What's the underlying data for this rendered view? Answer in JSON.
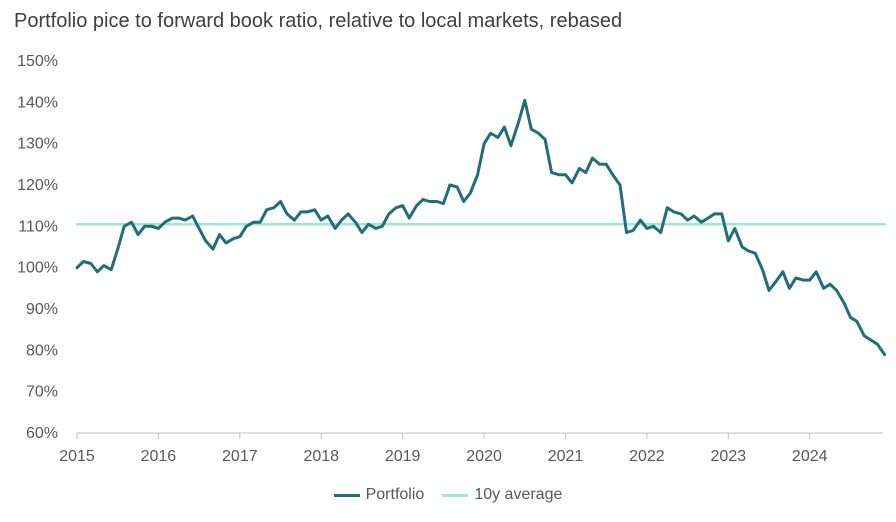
{
  "chart_data": {
    "type": "line",
    "title": "Portfolio pice to forward book ratio, relative to local markets, rebased",
    "xlabel": "",
    "ylabel": "",
    "xlim": [
      2015,
      2024.9
    ],
    "ylim": [
      60,
      150
    ],
    "y_ticks": [
      60,
      70,
      80,
      90,
      100,
      110,
      120,
      130,
      140,
      150
    ],
    "y_tick_labels": [
      "60%",
      "70%",
      "80%",
      "90%",
      "100%",
      "110%",
      "120%",
      "130%",
      "140%",
      "150%"
    ],
    "x_ticks": [
      2015,
      2016,
      2017,
      2018,
      2019,
      2020,
      2021,
      2022,
      2023,
      2024
    ],
    "x_tick_labels": [
      "2015",
      "2016",
      "2017",
      "2018",
      "2019",
      "2020",
      "2021",
      "2022",
      "2023",
      "2024"
    ],
    "grid": false,
    "legend_position": "bottom",
    "series": [
      {
        "name": "Portfolio",
        "color": "#1F6E79",
        "x": [
          2015.0,
          2015.08,
          2015.17,
          2015.25,
          2015.33,
          2015.42,
          2015.5,
          2015.58,
          2015.67,
          2015.75,
          2015.83,
          2015.92,
          2016.0,
          2016.08,
          2016.17,
          2016.25,
          2016.33,
          2016.42,
          2016.5,
          2016.58,
          2016.67,
          2016.75,
          2016.83,
          2016.92,
          2017.0,
          2017.08,
          2017.17,
          2017.25,
          2017.33,
          2017.42,
          2017.5,
          2017.58,
          2017.67,
          2017.75,
          2017.83,
          2017.92,
          2018.0,
          2018.08,
          2018.17,
          2018.25,
          2018.33,
          2018.42,
          2018.5,
          2018.58,
          2018.67,
          2018.75,
          2018.83,
          2018.92,
          2019.0,
          2019.08,
          2019.17,
          2019.25,
          2019.33,
          2019.42,
          2019.5,
          2019.58,
          2019.67,
          2019.75,
          2019.83,
          2019.92,
          2020.0,
          2020.08,
          2020.17,
          2020.25,
          2020.33,
          2020.42,
          2020.5,
          2020.58,
          2020.67,
          2020.75,
          2020.83,
          2020.92,
          2021.0,
          2021.08,
          2021.17,
          2021.25,
          2021.33,
          2021.42,
          2021.5,
          2021.58,
          2021.67,
          2021.75,
          2021.83,
          2021.92,
          2022.0,
          2022.08,
          2022.17,
          2022.25,
          2022.33,
          2022.42,
          2022.5,
          2022.58,
          2022.67,
          2022.75,
          2022.83,
          2022.92,
          2023.0,
          2023.08,
          2023.17,
          2023.25,
          2023.33,
          2023.42,
          2023.5,
          2023.58,
          2023.67,
          2023.75,
          2023.83,
          2023.92,
          2024.0,
          2024.08,
          2024.17,
          2024.25,
          2024.33,
          2024.42,
          2024.5,
          2024.58,
          2024.67,
          2024.75,
          2024.83,
          2024.92
        ],
        "values": [
          100,
          101.5,
          101,
          99,
          100.5,
          99.5,
          104.5,
          110,
          111,
          108,
          110,
          110,
          109.5,
          111,
          112,
          112,
          111.5,
          112.5,
          109.5,
          106.5,
          104.5,
          108,
          106,
          107,
          107.5,
          110,
          111,
          111,
          114,
          114.5,
          116,
          113,
          111.5,
          113.5,
          113.5,
          114,
          111.5,
          112.5,
          109.5,
          111.5,
          113,
          111,
          108.5,
          110.5,
          109.5,
          110,
          113,
          114.5,
          115,
          112,
          115,
          116.5,
          116,
          116,
          115.5,
          120,
          119.5,
          116,
          118,
          122.5,
          130,
          132.5,
          131.5,
          134,
          129.5,
          135,
          140.5,
          133.5,
          132.5,
          131,
          123,
          122.5,
          122.5,
          120.5,
          124,
          123,
          126.5,
          125,
          125,
          122.5,
          120,
          108.5,
          109,
          111.5,
          109.5,
          110,
          108.5,
          114.5,
          113.5,
          113,
          111.5,
          112.5,
          111,
          112,
          113,
          113,
          106.5,
          109.5,
          105,
          104,
          103.5,
          99.5,
          94.5,
          96.5,
          99,
          95,
          97.5,
          97,
          97,
          99,
          95,
          96,
          94.5,
          91.5,
          88,
          87,
          83.5,
          82.5,
          81.5,
          79
        ]
      },
      {
        "name": "10y average",
        "color": "#9BE7D9",
        "x": [
          2015.0,
          2024.92
        ],
        "values": [
          110.5,
          110.5
        ]
      }
    ]
  }
}
